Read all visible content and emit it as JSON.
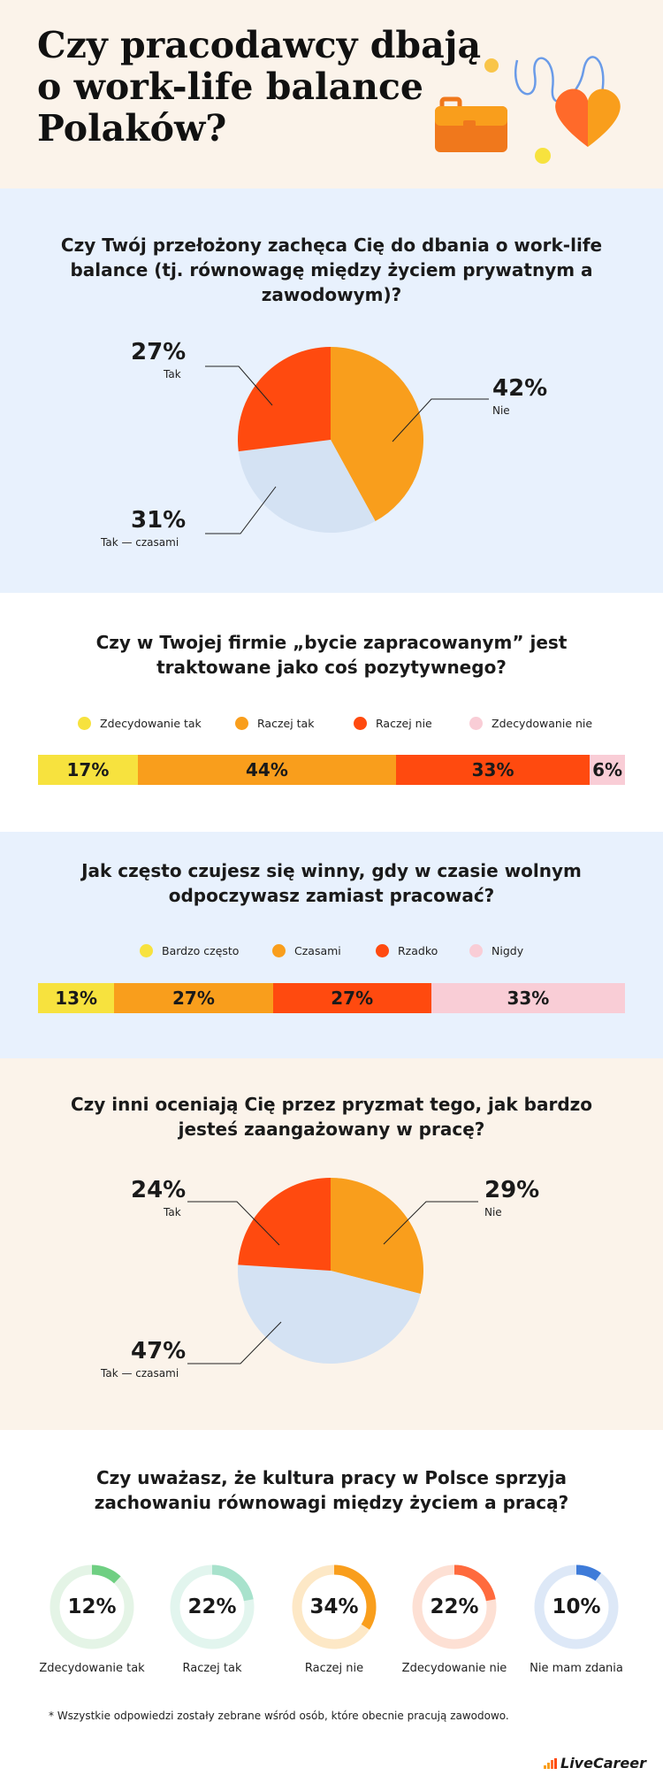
{
  "title": "Czy pracodawcy dbają o work-life balance Polaków?",
  "colors": {
    "yellow": "#f7e23e",
    "orange": "#f99e1c",
    "red": "#ff4a0f",
    "pink": "#f9cdd6",
    "light_blue": "#d4e2f3",
    "green": "#6fcf82",
    "mint": "#a8e2cc",
    "salmon": "#ff6a3d",
    "blue": "#3e7bd9"
  },
  "chart_data": [
    {
      "type": "pie",
      "title": "Czy Twój przełożony zachęca Cię do dbania o work-life balance (tj. równowagę między życiem prywatnym a zawodowym)?",
      "slices": [
        {
          "label": "Nie",
          "value": 42,
          "pct_text": "42%"
        },
        {
          "label": "Tak — czasami",
          "value": 31,
          "pct_text": "31%"
        },
        {
          "label": "Tak",
          "value": 27,
          "pct_text": "27%"
        }
      ]
    },
    {
      "type": "bar",
      "title": "Czy w Twojej firmie „bycie zapracowanym” jest traktowane jako coś pozytywnego?",
      "series": [
        {
          "name": "Zdecydowanie tak",
          "value": 17,
          "text": "17%"
        },
        {
          "name": "Raczej tak",
          "value": 44,
          "text": "44%"
        },
        {
          "name": "Raczej nie",
          "value": 33,
          "text": "33%"
        },
        {
          "name": "Zdecydowanie nie",
          "value": 6,
          "text": "6%"
        }
      ]
    },
    {
      "type": "bar",
      "title": "Jak często czujesz się winny, gdy w czasie wolnym odpoczywasz zamiast pracować?",
      "series": [
        {
          "name": "Bardzo często",
          "value": 13,
          "text": "13%"
        },
        {
          "name": "Czasami",
          "value": 27,
          "text": "27%"
        },
        {
          "name": "Rzadko",
          "value": 27,
          "text": "27%"
        },
        {
          "name": "Nigdy",
          "value": 33,
          "text": "33%"
        }
      ]
    },
    {
      "type": "pie",
      "title": "Czy inni oceniają Cię przez pryzmat tego, jak bardzo jesteś zaangażowany w pracę?",
      "slices": [
        {
          "label": "Nie",
          "value": 29,
          "pct_text": "29%"
        },
        {
          "label": "Tak — czasami",
          "value": 47,
          "pct_text": "47%"
        },
        {
          "label": "Tak",
          "value": 24,
          "pct_text": "24%"
        }
      ]
    },
    {
      "type": "donut",
      "title": "Czy uważasz, że kultura pracy w Polsce sprzyja zachowaniu równowagi między życiem a pracą?",
      "items": [
        {
          "label": "Zdecydowanie tak",
          "value": 12,
          "text": "12%"
        },
        {
          "label": "Raczej tak",
          "value": 22,
          "text": "22%"
        },
        {
          "label": "Raczej nie",
          "value": 34,
          "text": "34%"
        },
        {
          "label": "Zdecydowanie nie",
          "value": 22,
          "text": "22%"
        },
        {
          "label": "Nie mam zdania",
          "value": 10,
          "text": "10%"
        }
      ]
    }
  ],
  "footnote": "* Wszystkie odpowiedzi zostały zebrane wśród osób, które obecnie pracują zawodowo.",
  "logo": "LiveCareer"
}
